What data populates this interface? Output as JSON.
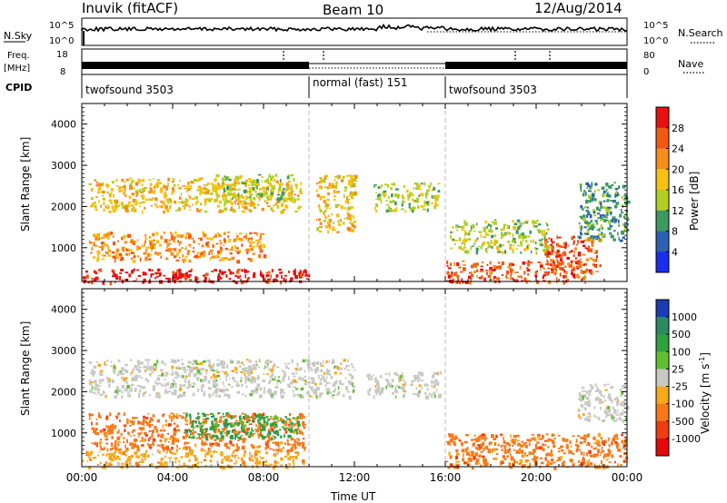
{
  "header": {
    "station": "Inuvik (fitACF)",
    "beam": "Beam 10",
    "date": "12/Aug/2014"
  },
  "strips": {
    "nsky_label": "N.Sky",
    "nsky_ticks": [
      "10^5",
      "10^0"
    ],
    "nsearch_label": "N.Search",
    "nsearch_ticks": [
      "10^5",
      "10^0"
    ],
    "freq_label_1": "Freq.",
    "freq_label_2": "[MHz]",
    "freq_ticks": [
      "18",
      "8"
    ],
    "nave_label": "Nave",
    "nave_ticks": [
      "80",
      "0"
    ],
    "cpid_label": "CPID",
    "cpid_segments": [
      {
        "label": "twofsound 3503",
        "start_hour": 0,
        "end_hour": 10.0
      },
      {
        "label": "normal (fast) 151",
        "start_hour": 10.0,
        "end_hour": 16.0
      },
      {
        "label": "twofsound 3503",
        "start_hour": 16.0,
        "end_hour": 24
      }
    ]
  },
  "colorbars": {
    "power": {
      "title": "Power [dB]",
      "ticks": [
        "28",
        "24",
        "20",
        "16",
        "12",
        "8",
        "4"
      ],
      "colors": [
        "#e81010",
        "#f05a10",
        "#f88c18",
        "#f8c010",
        "#b0d020",
        "#3c9a60",
        "#2c60b4",
        "#1a2cf0"
      ]
    },
    "velocity": {
      "title": "Velocity [m s",
      "title_exponent": "-1",
      "title_close": "]",
      "ticks": [
        "1000",
        "500",
        "100",
        "25",
        "-25",
        "-100",
        "-500",
        "-1000"
      ],
      "colors": [
        "#1a3cb4",
        "#2c8a60",
        "#30a040",
        "#60c030",
        "#c8c8c4",
        "#f8a818",
        "#f87818",
        "#f03c10",
        "#e80808"
      ]
    }
  },
  "chart_data": [
    {
      "type": "heatmap",
      "name": "power",
      "ylabel": "Slant Range [km]",
      "yticks": [
        "4000",
        "3000",
        "2000",
        "1000"
      ],
      "ylim": [
        180,
        4500
      ],
      "xlim": [
        0,
        24
      ],
      "vlines_hour": [
        10.0,
        16.0
      ],
      "bands": [
        {
          "t0": 0.3,
          "t1": 9.6,
          "r0": 1900,
          "r1": 2700,
          "level": 16
        },
        {
          "t0": 0.3,
          "t1": 8.0,
          "r0": 700,
          "r1": 1400,
          "level": 20
        },
        {
          "t0": 0.0,
          "t1": 10.0,
          "r0": 180,
          "r1": 500,
          "level": 28
        },
        {
          "t0": 5.8,
          "t1": 9.3,
          "r0": 2200,
          "r1": 2800,
          "level": 12
        },
        {
          "t0": 10.3,
          "t1": 12.0,
          "r0": 1400,
          "r1": 2800,
          "level": 16
        },
        {
          "t0": 12.8,
          "t1": 15.7,
          "r0": 1900,
          "r1": 2600,
          "level": 12
        },
        {
          "t0": 16.2,
          "t1": 20.5,
          "r0": 900,
          "r1": 1700,
          "level": 12
        },
        {
          "t0": 16.0,
          "t1": 22.2,
          "r0": 180,
          "r1": 700,
          "level": 24
        },
        {
          "t0": 20.3,
          "t1": 22.8,
          "r0": 400,
          "r1": 1300,
          "level": 24
        },
        {
          "t0": 21.8,
          "t1": 24.0,
          "r0": 1200,
          "r1": 2600,
          "level": 8
        }
      ]
    },
    {
      "type": "heatmap",
      "name": "velocity",
      "ylabel": "Slant Range [km]",
      "xlabel": "Time UT",
      "xticks": [
        "00:00",
        "04:00",
        "08:00",
        "12:00",
        "16:00",
        "20:00",
        "00:00"
      ],
      "yticks": [
        "4000",
        "3000",
        "2000",
        "1000"
      ],
      "ylim": [
        180,
        4500
      ],
      "xlim": [
        0,
        24
      ],
      "vlines_hour": [
        10.0,
        16.0
      ],
      "bands": [
        {
          "t0": 0.3,
          "t1": 12.0,
          "r0": 1900,
          "r1": 2800,
          "level": 0
        },
        {
          "t0": 12.5,
          "t1": 15.8,
          "r0": 1900,
          "r1": 2500,
          "level": 0
        },
        {
          "t0": 0.3,
          "t1": 9.8,
          "r0": 600,
          "r1": 1500,
          "level": -500
        },
        {
          "t0": 4.5,
          "t1": 9.5,
          "r0": 900,
          "r1": 1500,
          "level": 100
        },
        {
          "t0": 0.0,
          "t1": 9.8,
          "r0": 180,
          "r1": 600,
          "level": -100
        },
        {
          "t0": 16.0,
          "t1": 24.0,
          "r0": 180,
          "r1": 1000,
          "level": -500
        },
        {
          "t0": 21.8,
          "t1": 24.0,
          "r0": 1300,
          "r1": 2200,
          "level": 0
        }
      ]
    }
  ]
}
